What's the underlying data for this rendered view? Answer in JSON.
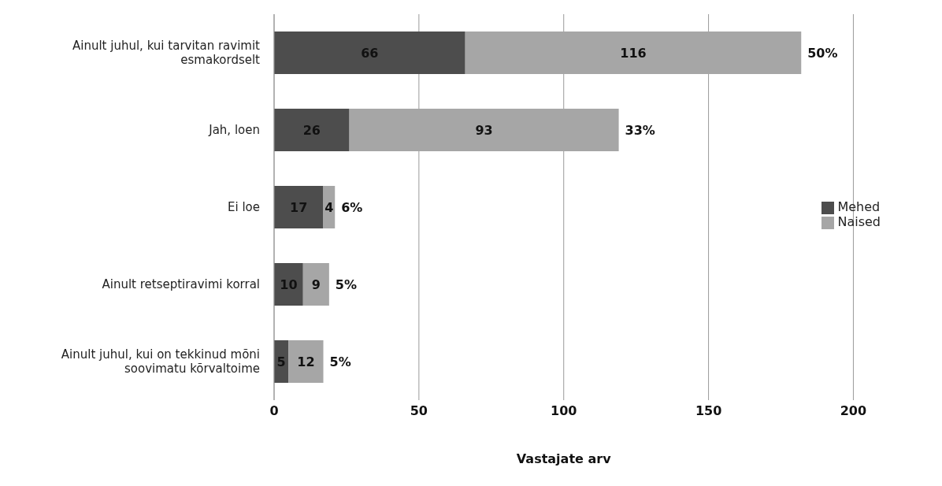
{
  "chart_data": {
    "type": "bar",
    "orientation": "horizontal",
    "stacked": true,
    "xlabel": "Vastajate arv",
    "categories": [
      "Ainult juhul, kui tarvitan ravimit esmakordselt",
      "Jah, loen",
      "Ei loe",
      "Ainult retseptiravimi korral",
      "Ainult juhul, kui on tekkinud mõni soovimatu kõrvaltoime"
    ],
    "series": [
      {
        "name": "Mehed",
        "color": "#4d4d4d",
        "values": [
          66,
          26,
          17,
          10,
          5
        ]
      },
      {
        "name": "Naised",
        "color": "#a6a6a6",
        "values": [
          116,
          93,
          4,
          9,
          12
        ]
      }
    ],
    "xlim": [
      0,
      200
    ],
    "xticks": [
      0,
      50,
      100,
      150,
      200
    ],
    "grid": "x",
    "legend": "right",
    "data_labels": true,
    "annotations": [
      {
        "text": "50%",
        "x": 182,
        "y": "Ainult juhul, kui tarvitan ravimit esmakordselt"
      },
      {
        "text": "33%",
        "x": 119,
        "y": "Jah, loen"
      },
      {
        "text": "6%",
        "x": 21,
        "y": "Ei loe"
      },
      {
        "text": "5%",
        "x": 19,
        "y": "Ainult retseptiravimi korral"
      },
      {
        "text": "5%",
        "x": 17,
        "y": "Ainult juhul, kui on tekkinud mõni soovimatu kõrvaltoime"
      }
    ]
  }
}
